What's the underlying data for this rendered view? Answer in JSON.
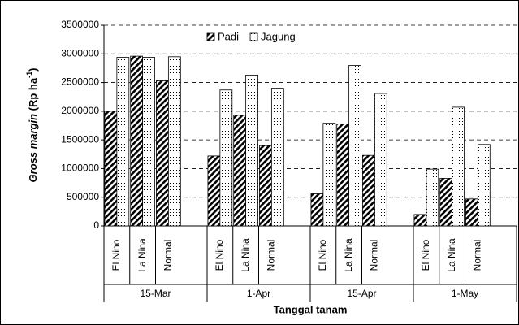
{
  "chart_data": {
    "type": "bar",
    "y_label": [
      "Gross margin",
      " (Rp ha",
      "-1",
      ")"
    ],
    "x_label": "Tanggal tanam",
    "groups": [
      "15-Mar",
      "1-Apr",
      "15-Apr",
      "1-May"
    ],
    "categories": [
      "El Nino",
      "La Nina",
      "Normal",
      "El Nino",
      "La Nina",
      "Normal",
      "El Nino",
      "La Nina",
      "Normal",
      "El Nino",
      "La Nina",
      "Normal"
    ],
    "series": [
      {
        "name": "Padi",
        "color": "#000000",
        "values": [
          2000000,
          2960000,
          2530000,
          1220000,
          1930000,
          1400000,
          560000,
          1780000,
          1230000,
          200000,
          830000,
          470000
        ]
      },
      {
        "name": "Jagung",
        "color": "#000000",
        "values": [
          2940000,
          2940000,
          2950000,
          2370000,
          2630000,
          2400000,
          1790000,
          2800000,
          2310000,
          990000,
          2070000,
          1420000
        ]
      }
    ],
    "ylim": [
      0,
      3500000
    ],
    "yticks": [
      0,
      500000,
      1000000,
      1500000,
      2000000,
      2500000,
      3000000,
      3500000
    ],
    "grid": true,
    "legend": "top"
  }
}
